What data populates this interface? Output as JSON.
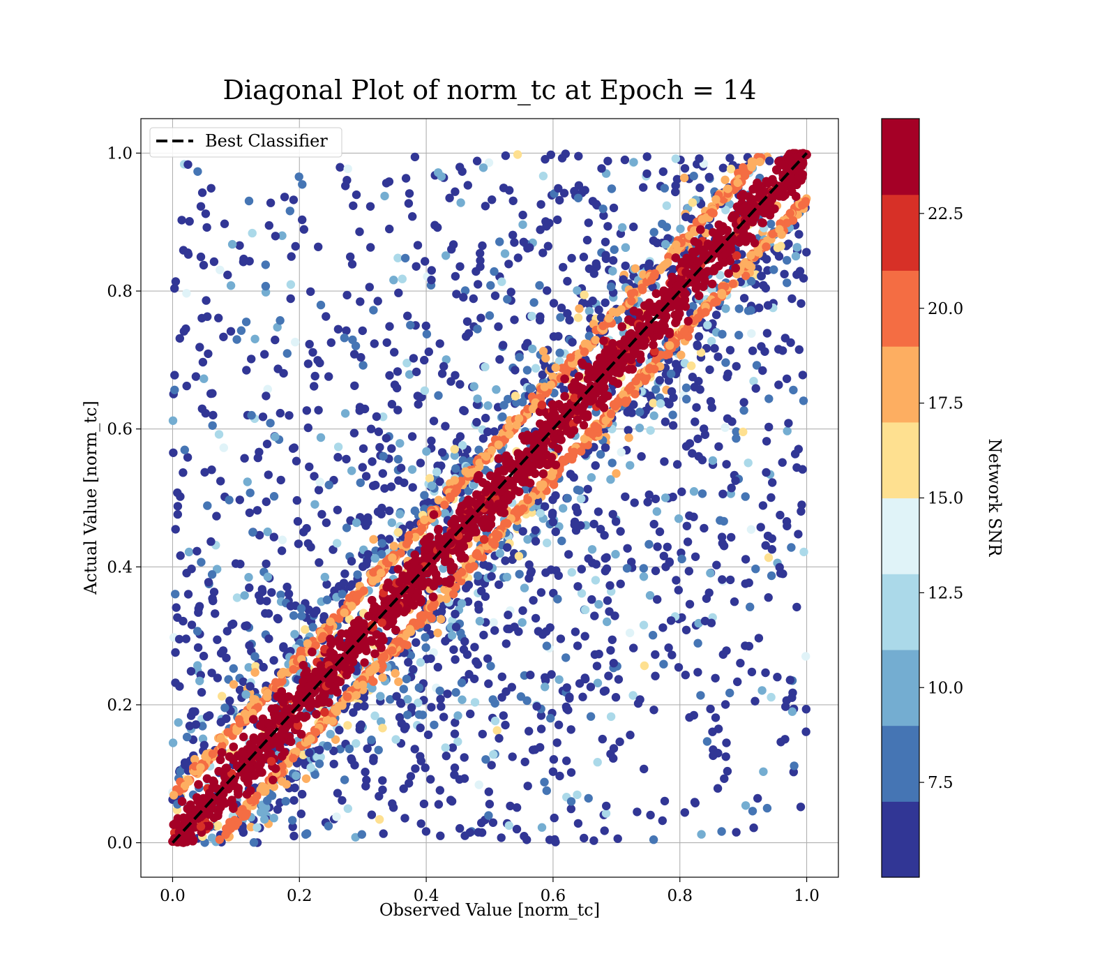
{
  "chart_data": {
    "type": "scatter",
    "title": "Diagonal Plot of norm_tc at Epoch = 14",
    "xlabel": "Observed Value [norm_tc]",
    "ylabel": "Actual Value [norm_tc]",
    "xlim": [
      -0.05,
      1.05
    ],
    "ylim": [
      -0.05,
      1.05
    ],
    "xticks": [
      "0.0",
      "0.2",
      "0.4",
      "0.6",
      "0.8",
      "1.0"
    ],
    "yticks": [
      "0.0",
      "0.2",
      "0.4",
      "0.6",
      "0.8",
      "1.0"
    ],
    "grid": true,
    "legend": {
      "position": "upper-left",
      "entries": [
        {
          "label": "Best Classifier",
          "style": "black dashed line"
        }
      ]
    },
    "reference_line": {
      "name": "Best Classifier",
      "x": [
        0.0,
        1.0
      ],
      "y": [
        0.0,
        1.0
      ]
    },
    "colorbar": {
      "label": "Network SNR",
      "range": [
        5.0,
        25.0
      ],
      "ticks": [
        "7.5",
        "10.0",
        "12.5",
        "15.0",
        "17.5",
        "20.0",
        "22.5"
      ],
      "colors": [
        "#313695",
        "#4575b4",
        "#74add1",
        "#abd9e9",
        "#e0f3f8",
        "#fee090",
        "#fdae61",
        "#f46d43",
        "#d73027",
        "#a50026"
      ]
    },
    "series": [
      {
        "snr_band": "high (>22.5)",
        "color": "#a50026",
        "distribution": "dense band along y = x, |y - x| <= 0.08",
        "points": [
          [
            0.05,
            0.06
          ],
          [
            0.2,
            0.21
          ],
          [
            0.4,
            0.39
          ],
          [
            0.6,
            0.61
          ],
          [
            0.8,
            0.8
          ],
          [
            0.95,
            0.96
          ]
        ]
      },
      {
        "snr_band": "15-22.5",
        "color": "#f46d43",
        "distribution": "edges of the diagonal band",
        "points": [
          [
            0.12,
            0.04
          ],
          [
            0.36,
            0.27
          ],
          [
            0.62,
            0.5
          ],
          [
            0.9,
            0.81
          ],
          [
            0.1,
            0.2
          ],
          [
            0.45,
            0.55
          ]
        ]
      },
      {
        "snr_band": "low (<12.5)",
        "color": "#313695",
        "distribution": "scattered off-diagonal over the whole unit square",
        "points": [
          [
            0.03,
            0.87
          ],
          [
            0.25,
            0.45
          ],
          [
            0.4,
            0.85
          ],
          [
            0.6,
            0.2
          ],
          [
            0.85,
            0.35
          ],
          [
            0.93,
            0.14
          ],
          [
            0.09,
            0.02
          ],
          [
            0.55,
            0.98
          ]
        ]
      }
    ]
  }
}
